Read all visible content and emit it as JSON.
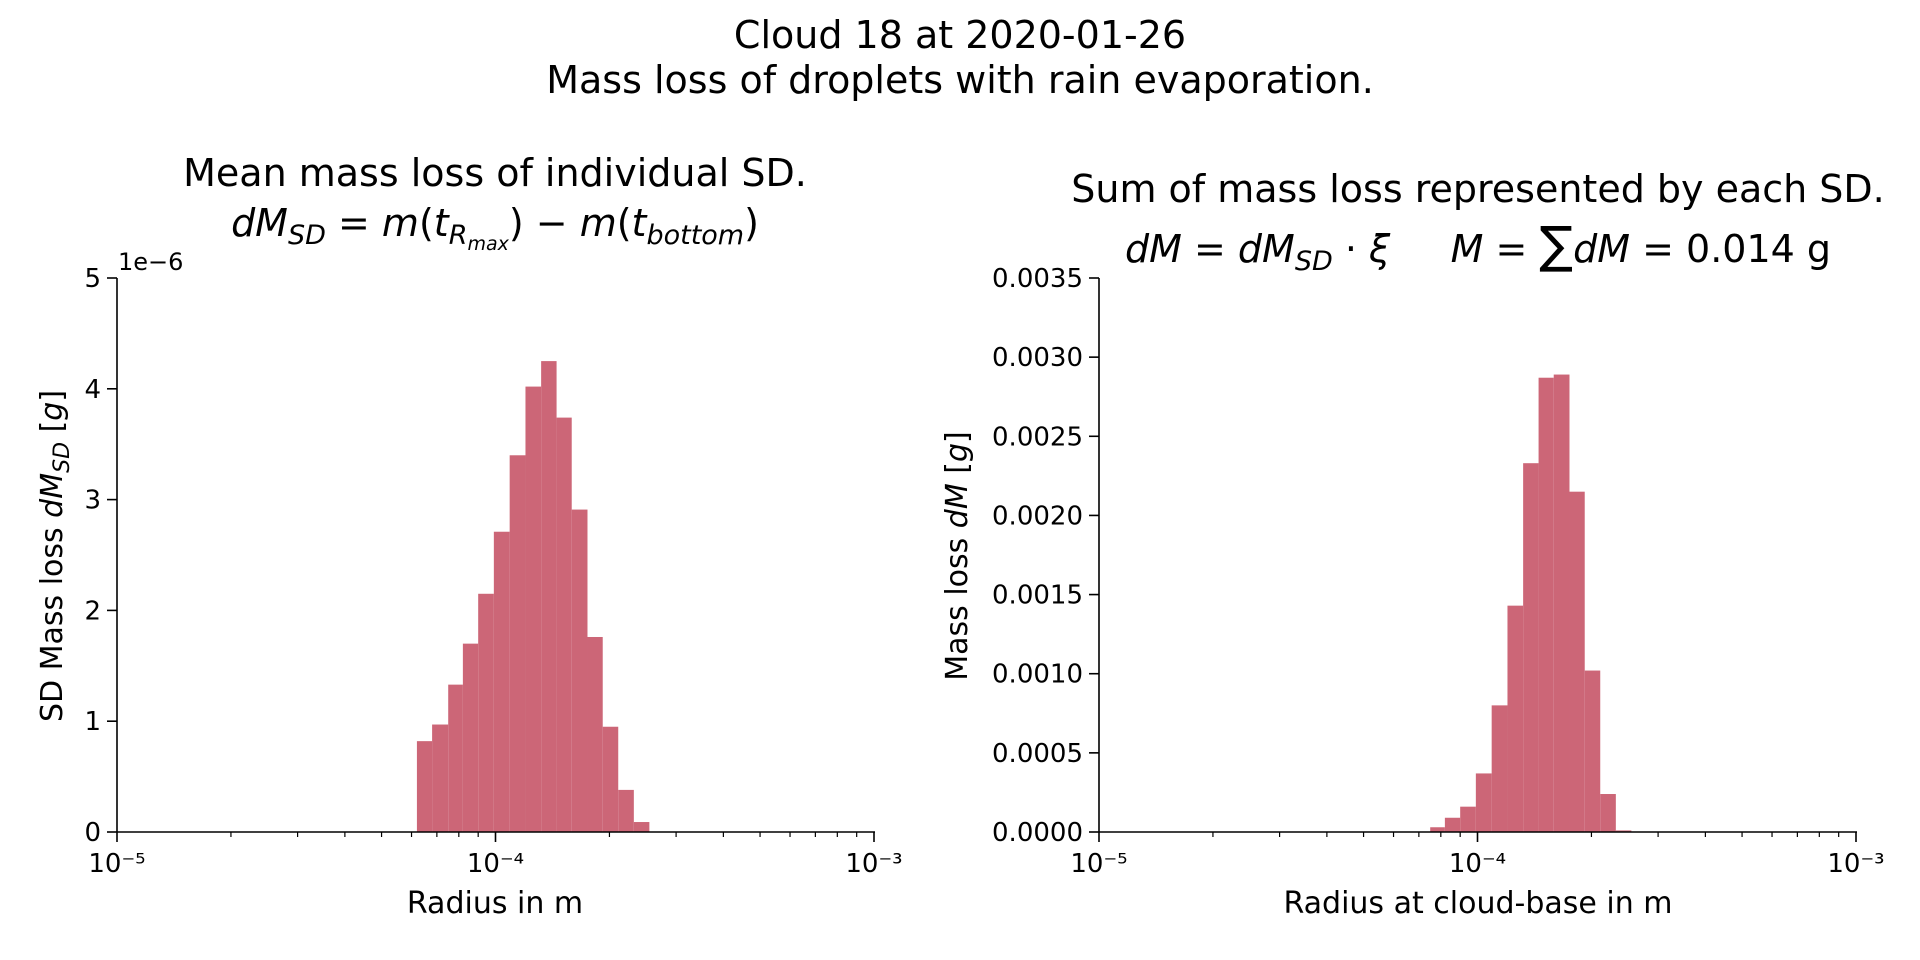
{
  "figure": {
    "suptitle_line1": "Cloud 18 at 2020-01-26",
    "suptitle_line2": "Mass loss of droplets with rain evaporation."
  },
  "chart_data": [
    {
      "type": "bar",
      "title": "Mean mass loss of individual SD.",
      "title_formula": "dM_SD = m(t_R_max) − m(t_bottom)",
      "xlabel": "Radius in m",
      "ylabel": "SD Mass loss dM_SD [g]",
      "x_scale": "log",
      "xlim": [
        1e-05,
        0.001
      ],
      "ylim": [
        0,
        5e-06
      ],
      "y_offset_text": "1e−6",
      "x_tick_labels": [
        "10⁻⁵",
        "10⁻⁴",
        "10⁻³"
      ],
      "y_tick_labels": [
        "0",
        "1",
        "2",
        "3",
        "4",
        "5"
      ],
      "color": "#cc6677",
      "bins": [
        {
          "x0": 6.2e-05,
          "x1": 6.8e-05,
          "value": 8.2e-07
        },
        {
          "x0": 6.8e-05,
          "x1": 7.5e-05,
          "value": 9.7e-07
        },
        {
          "x0": 7.5e-05,
          "x1": 8.2e-05,
          "value": 1.33e-06
        },
        {
          "x0": 8.2e-05,
          "x1": 9e-05,
          "value": 1.7e-06
        },
        {
          "x0": 9e-05,
          "x1": 9.9e-05,
          "value": 2.15e-06
        },
        {
          "x0": 9.9e-05,
          "x1": 0.000109,
          "value": 2.71e-06
        },
        {
          "x0": 0.000109,
          "x1": 0.00012,
          "value": 3.4e-06
        },
        {
          "x0": 0.00012,
          "x1": 0.000132,
          "value": 4.02e-06
        },
        {
          "x0": 0.000132,
          "x1": 0.000145,
          "value": 4.25e-06
        },
        {
          "x0": 0.000145,
          "x1": 0.000159,
          "value": 3.74e-06
        },
        {
          "x0": 0.000159,
          "x1": 0.000175,
          "value": 2.91e-06
        },
        {
          "x0": 0.000175,
          "x1": 0.000192,
          "value": 1.76e-06
        },
        {
          "x0": 0.000192,
          "x1": 0.000211,
          "value": 9.5e-07
        },
        {
          "x0": 0.000211,
          "x1": 0.000232,
          "value": 3.8e-07
        },
        {
          "x0": 0.000232,
          "x1": 0.000255,
          "value": 9e-08
        }
      ]
    },
    {
      "type": "bar",
      "title": "Sum of mass loss represented by each SD.",
      "title_formula": "dM = dM_SD · ξ     M = ∑dM = 0.014 g",
      "xlabel": "Radius at cloud-base in m",
      "ylabel": "Mass loss dM [g]",
      "x_scale": "log",
      "xlim": [
        1e-05,
        0.001
      ],
      "ylim": [
        0,
        0.0035
      ],
      "x_tick_labels": [
        "10⁻⁵",
        "10⁻⁴",
        "10⁻³"
      ],
      "y_tick_labels": [
        "0.0000",
        "0.0005",
        "0.0010",
        "0.0015",
        "0.0020",
        "0.0025",
        "0.0030",
        "0.0035"
      ],
      "color": "#cc6677",
      "bins": [
        {
          "x0": 7.5e-05,
          "x1": 8.2e-05,
          "value": 3e-05
        },
        {
          "x0": 8.2e-05,
          "x1": 9e-05,
          "value": 9e-05
        },
        {
          "x0": 9e-05,
          "x1": 9.9e-05,
          "value": 0.00016
        },
        {
          "x0": 9.9e-05,
          "x1": 0.000109,
          "value": 0.00037
        },
        {
          "x0": 0.000109,
          "x1": 0.00012,
          "value": 0.0008
        },
        {
          "x0": 0.00012,
          "x1": 0.000132,
          "value": 0.00143
        },
        {
          "x0": 0.000132,
          "x1": 0.000145,
          "value": 0.00233
        },
        {
          "x0": 0.000145,
          "x1": 0.000159,
          "value": 0.00287
        },
        {
          "x0": 0.000159,
          "x1": 0.000175,
          "value": 0.00289
        },
        {
          "x0": 0.000175,
          "x1": 0.000192,
          "value": 0.00215
        },
        {
          "x0": 0.000192,
          "x1": 0.000211,
          "value": 0.00102
        },
        {
          "x0": 0.000211,
          "x1": 0.000232,
          "value": 0.00024
        },
        {
          "x0": 0.000232,
          "x1": 0.000255,
          "value": 1e-05
        }
      ]
    }
  ]
}
